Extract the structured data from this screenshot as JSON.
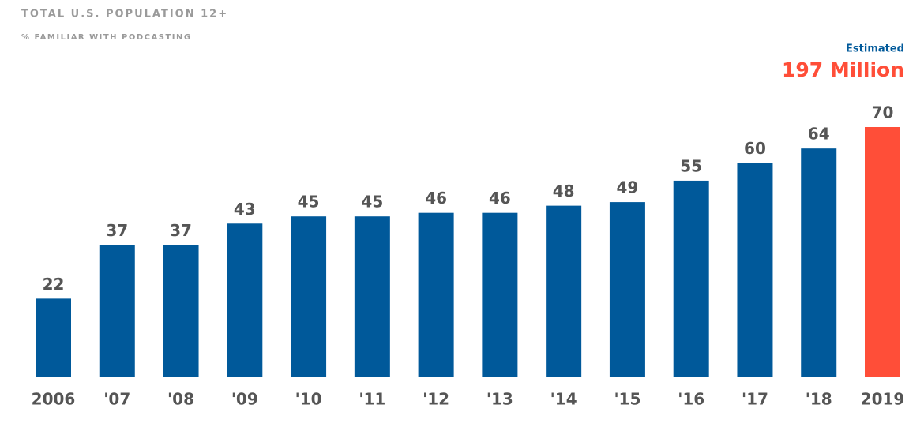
{
  "chart_data": {
    "type": "bar",
    "title": "TOTAL U.S. POPULATION 12+",
    "subtitle": "% FAMILIAR WITH PODCASTING",
    "annotations": [
      "Estimated",
      "197 Million"
    ],
    "categories": [
      "2006",
      "'07",
      "'08",
      "'09",
      "'10",
      "'11",
      "'12",
      "'13",
      "'14",
      "'15",
      "'16",
      "'17",
      "'18",
      "2019"
    ],
    "values": [
      22,
      37,
      37,
      43,
      45,
      45,
      46,
      46,
      48,
      49,
      55,
      60,
      64,
      70
    ],
    "colors": [
      "#00599a",
      "#00599a",
      "#00599a",
      "#00599a",
      "#00599a",
      "#00599a",
      "#00599a",
      "#00599a",
      "#00599a",
      "#00599a",
      "#00599a",
      "#00599a",
      "#00599a",
      "#ff4e38"
    ]
  }
}
